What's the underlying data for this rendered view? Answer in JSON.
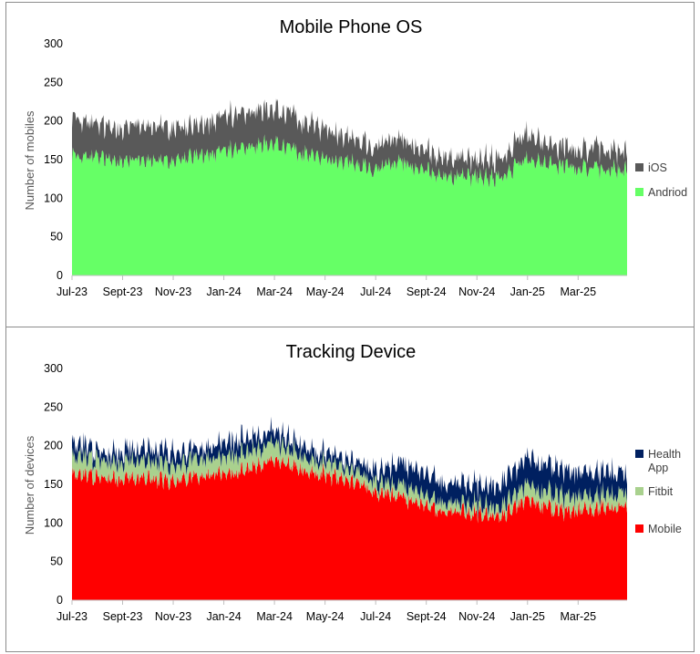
{
  "chart_data": [
    {
      "type": "area",
      "stacked": true,
      "title": "Mobile Phone OS",
      "xlabel": "",
      "ylabel": "Number of mobiles",
      "ylim": [
        0,
        300
      ],
      "yticks": [
        "0",
        "50",
        "100",
        "150",
        "200",
        "250",
        "300"
      ],
      "xticks": [
        "Jul-23",
        "Sept-23",
        "Nov-23",
        "Jan-24",
        "Mar-24",
        "May-24",
        "Jul-24",
        "Sept-24",
        "Nov-24",
        "Jan-25",
        "Mar-25"
      ],
      "x_range": [
        "2023-07-01",
        "2025-04-30"
      ],
      "grid": false,
      "legend": "right",
      "series_note": "monthly approximate levels; daily noise not readable",
      "series": [
        {
          "name": "Andriod",
          "color": "#66ff66",
          "values": [
            157,
            152,
            149,
            150,
            148,
            155,
            158,
            165,
            172,
            160,
            152,
            147,
            140,
            146,
            136,
            128,
            128,
            126,
            150,
            146,
            140,
            137,
            135
          ]
        },
        {
          "name": "iOS",
          "color": "#595959",
          "values": [
            48,
            42,
            43,
            45,
            42,
            38,
            44,
            45,
            45,
            42,
            38,
            34,
            30,
            30,
            26,
            24,
            22,
            24,
            33,
            26,
            24,
            26,
            25
          ]
        }
      ]
    },
    {
      "type": "area",
      "stacked": true,
      "title": "Tracking Device",
      "xlabel": "",
      "ylabel": "Number of devices",
      "ylim": [
        0,
        300
      ],
      "yticks": [
        "0",
        "50",
        "100",
        "150",
        "200",
        "250",
        "300"
      ],
      "xticks": [
        "Jul-23",
        "Sept-23",
        "Nov-23",
        "Jan-24",
        "Mar-24",
        "May-24",
        "Jul-24",
        "Sept-24",
        "Nov-24",
        "Jan-25",
        "Mar-25"
      ],
      "x_range": [
        "2023-07-01",
        "2025-04-30"
      ],
      "grid": false,
      "legend": "right",
      "series_note": "monthly approximate levels; daily noise not readable",
      "series": [
        {
          "name": "Mobile",
          "color": "#ff0000",
          "values": [
            163,
            160,
            156,
            158,
            152,
            160,
            162,
            170,
            180,
            170,
            162,
            155,
            142,
            135,
            120,
            115,
            112,
            110,
            128,
            118,
            115,
            120,
            118
          ]
        },
        {
          "name": "Fitbit",
          "color": "#a9d18e",
          "values": [
            24,
            22,
            22,
            22,
            20,
            22,
            22,
            22,
            22,
            18,
            16,
            15,
            14,
            14,
            13,
            12,
            12,
            12,
            20,
            20,
            18,
            17,
            17
          ]
        },
        {
          "name": "Health App",
          "color": "#002060",
          "values": [
            18,
            12,
            14,
            15,
            18,
            11,
            18,
            18,
            15,
            14,
            12,
            11,
            14,
            27,
            29,
            25,
            26,
            28,
            35,
            34,
            31,
            31,
            25
          ]
        }
      ]
    }
  ]
}
